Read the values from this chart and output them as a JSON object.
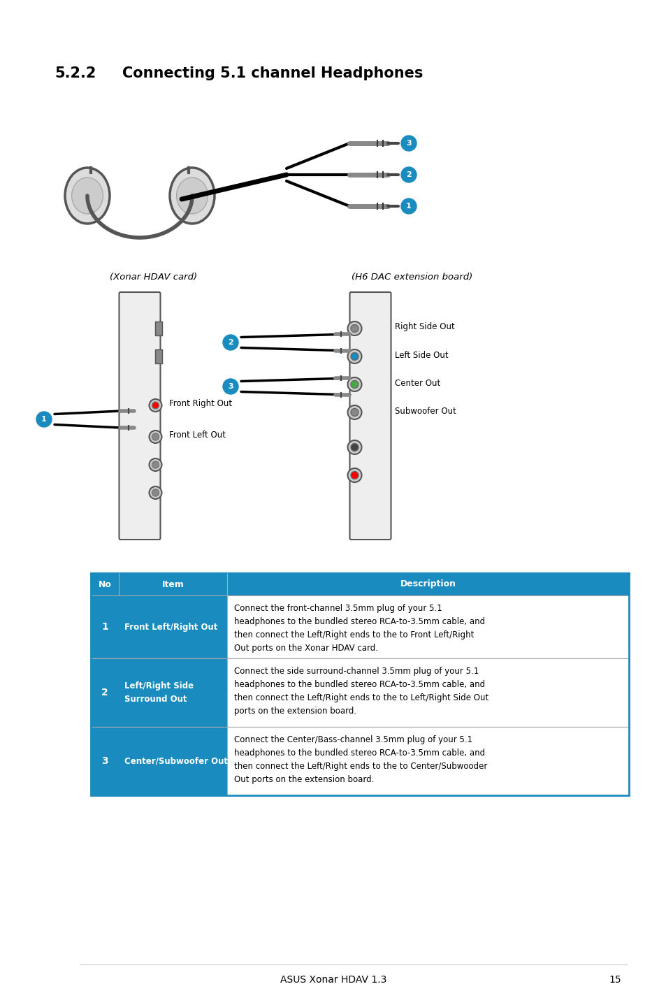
{
  "title_num": "5.2.2",
  "title_text": "Connecting 5.1 channel Headphones",
  "table_header": [
    "No",
    "Item",
    "Description"
  ],
  "table_rows": [
    {
      "no": "1",
      "item": "Front Left/Right Out",
      "desc": "Connect the front-channel 3.5mm plug of your 5.1\nheadphones to the bundled stereo RCA-to-3.5mm cable, and\nthen connect the Left/Right ends to the to Front Left/Right\nOut ports on the Xonar HDAV card."
    },
    {
      "no": "2",
      "item": "Left/Right Side\nSurround Out",
      "desc": "Connect the side surround-channel 3.5mm plug of your 5.1\nheadphones to the bundled stereo RCA-to-3.5mm cable, and\nthen connect the Left/Right ends to the to Left/Right Side Out\nports on the extension board."
    },
    {
      "no": "3",
      "item": "Center/Subwoofer Out",
      "desc": "Connect the Center/Bass-channel 3.5mm plug of your 5.1\nheadphones to the bundled stereo RCA-to-3.5mm cable, and\nthen connect the Left/Right ends to the to Center/Subwooder\nOut ports on the extension board."
    }
  ],
  "footer_text": "ASUS Xonar HDAV 1.3",
  "footer_page": "15",
  "header_left": "(Xonar HDAV card)",
  "header_right": "(H6 DAC extension board)",
  "right_labels": [
    "Right Side Out",
    "Left Side Out",
    "Center Out",
    "Subwoofer Out"
  ],
  "left_labels": [
    "Front Right Out",
    "Front Left Out"
  ],
  "blue_color": "#1a8bbf",
  "header_blue": "#0078a8",
  "table_blue": "#1a8bbf",
  "background": "#ffffff"
}
